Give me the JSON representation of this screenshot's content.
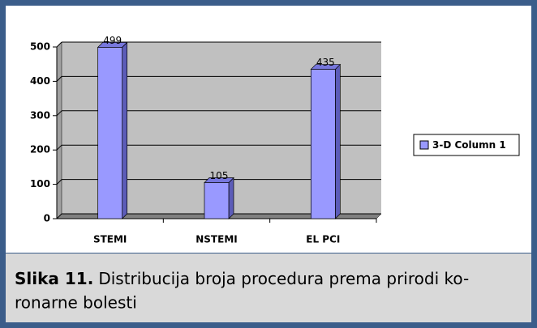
{
  "chart_data": {
    "type": "bar3d",
    "categories": [
      "STEMI",
      "NSTEMI",
      "EL PCI"
    ],
    "series": [
      {
        "name": "3-D Column 1",
        "color": "#9999ff",
        "values": [
          499,
          105,
          435
        ]
      }
    ],
    "ylim": [
      0,
      500
    ],
    "yticks": [
      0,
      100,
      200,
      300,
      400,
      500
    ],
    "grid": true,
    "legend": "right",
    "caption_label": "Slika 11.",
    "caption_lines": [
      "Distribucija broja procedura prema prirodi ko-",
      "ronarne bolesti"
    ]
  }
}
